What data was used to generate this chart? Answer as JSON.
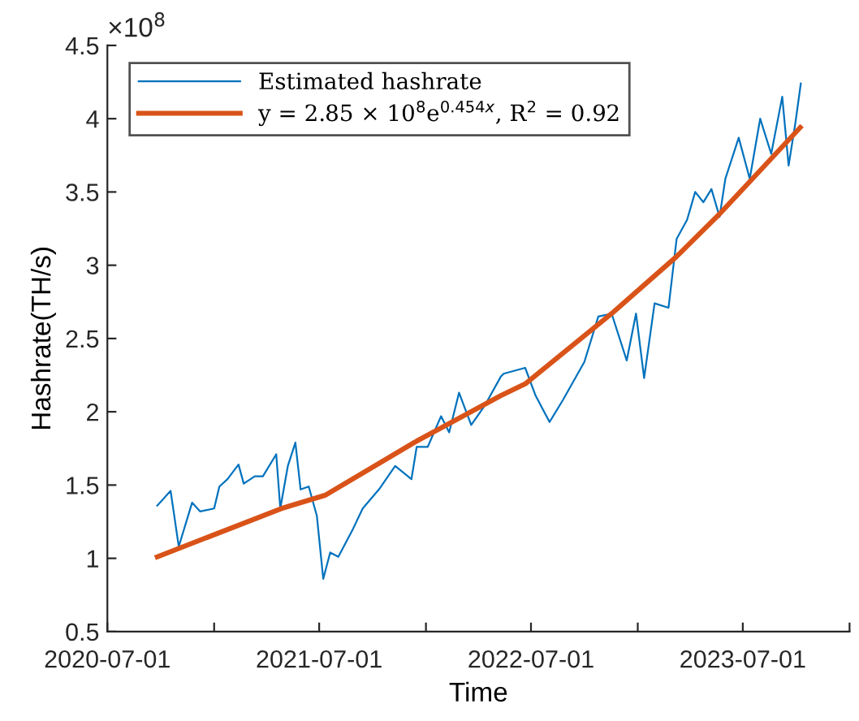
{
  "chart_data": {
    "type": "line",
    "xlabel": "Time",
    "ylabel": "Hashrate(TH/s)",
    "annotations": [
      "×10$^{8}$"
    ],
    "xlim": [
      "2020-07-01",
      "2024-01-01"
    ],
    "xticks": [
      {
        "value": "2020-07-01",
        "label": "2020-07-01"
      },
      {
        "value": "2021-01-01",
        "label": null
      },
      {
        "value": "2021-07-01",
        "label": "2021-07-01"
      },
      {
        "value": "2022-01-01",
        "label": null
      },
      {
        "value": "2022-07-01",
        "label": "2022-07-01"
      },
      {
        "value": "2023-01-01",
        "label": null
      },
      {
        "value": "2023-07-01",
        "label": "2023-07-01"
      },
      {
        "value": "2024-01-01",
        "label": null
      }
    ],
    "ylim": [
      0.5,
      4.5
    ],
    "yticks": [
      0.5,
      1,
      1.5,
      2,
      2.5,
      3,
      3.5,
      4,
      4.5
    ],
    "grid": false,
    "legend": "top left",
    "series": [
      {
        "name": "Estimated hashrate",
        "color": "#0072bd",
        "x": [
          "2020-09-25",
          "2020-10-18",
          "2020-11-01",
          "2020-11-24",
          "2020-12-08",
          "2021-01-01",
          "2021-01-10",
          "2021-01-24",
          "2021-02-12",
          "2021-02-21",
          "2021-03-12",
          "2021-03-26",
          "2021-04-18",
          "2021-04-25",
          "2021-05-08",
          "2021-05-21",
          "2021-05-30",
          "2021-06-13",
          "2021-06-27",
          "2021-07-08",
          "2021-07-20",
          "2021-08-03",
          "2021-08-27",
          "2021-09-14",
          "2021-10-12",
          "2021-11-09",
          "2021-12-07",
          "2021-12-16",
          "2022-01-04",
          "2022-01-27",
          "2022-02-10",
          "2022-02-27",
          "2022-03-20",
          "2022-04-12",
          "2022-05-10",
          "2022-05-15",
          "2022-06-21",
          "2022-07-09",
          "2022-08-02",
          "2022-08-25",
          "2022-10-01",
          "2022-10-25",
          "2022-11-17",
          "2022-12-13",
          "2022-12-29",
          "2023-01-12",
          "2023-01-30",
          "2023-02-23",
          "2023-03-09",
          "2023-03-27",
          "2023-04-10",
          "2023-04-24",
          "2023-05-08",
          "2023-05-22",
          "2023-06-01",
          "2023-06-24",
          "2023-07-13",
          "2023-07-31",
          "2023-08-19",
          "2023-09-07",
          "2023-09-18",
          "2023-09-30",
          "2023-10-09"
        ],
        "values": [
          1.36,
          1.46,
          1.08,
          1.38,
          1.32,
          1.34,
          1.49,
          1.54,
          1.64,
          1.51,
          1.56,
          1.56,
          1.71,
          1.34,
          1.63,
          1.79,
          1.47,
          1.49,
          1.29,
          0.86,
          1.04,
          1.01,
          1.19,
          1.34,
          1.47,
          1.63,
          1.54,
          1.76,
          1.76,
          1.97,
          1.86,
          2.13,
          1.91,
          2.04,
          2.24,
          2.26,
          2.3,
          2.11,
          1.93,
          2.08,
          2.34,
          2.65,
          2.67,
          2.35,
          2.67,
          2.23,
          2.74,
          2.71,
          3.18,
          3.31,
          3.5,
          3.43,
          3.52,
          3.33,
          3.59,
          3.87,
          3.59,
          4.0,
          3.76,
          4.15,
          3.68,
          3.98,
          4.24
        ]
      },
      {
        "name": "y = 2.85 × 10$^{8}$e$^{0.454x}$, R$^{2}$ = 0.92",
        "color": "#d95319",
        "x": [
          "2020-09-25",
          "2021-04-27",
          "2021-07-11",
          "2021-12-16",
          "2022-05-10",
          "2022-06-21",
          "2022-11-17",
          "2023-03-09",
          "2023-05-22",
          "2023-07-27",
          "2023-10-08"
        ],
        "values": [
          1.01,
          1.34,
          1.43,
          1.8,
          2.11,
          2.19,
          2.67,
          3.06,
          3.35,
          3.63,
          3.94
        ]
      }
    ]
  }
}
